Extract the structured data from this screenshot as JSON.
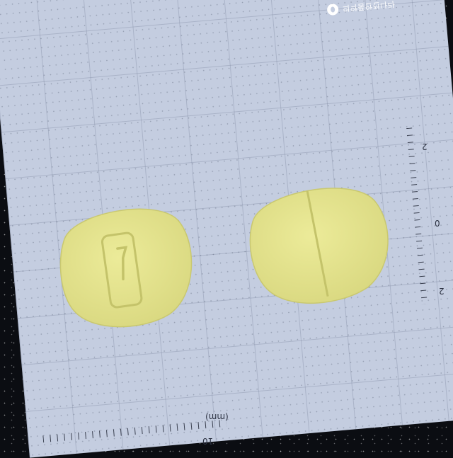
{
  "watermark": {
    "text": "의약품안전나라",
    "icon": "logo-mark-icon"
  },
  "scale": {
    "bottom_unit": "(mm)",
    "bottom_value": "10",
    "right_labels": [
      "2",
      "0",
      "2"
    ]
  },
  "colors": {
    "background": "#0b0d12",
    "board": "#c4cde0",
    "pill": "#e5e58f",
    "pill_shadow": "#c9c870"
  }
}
